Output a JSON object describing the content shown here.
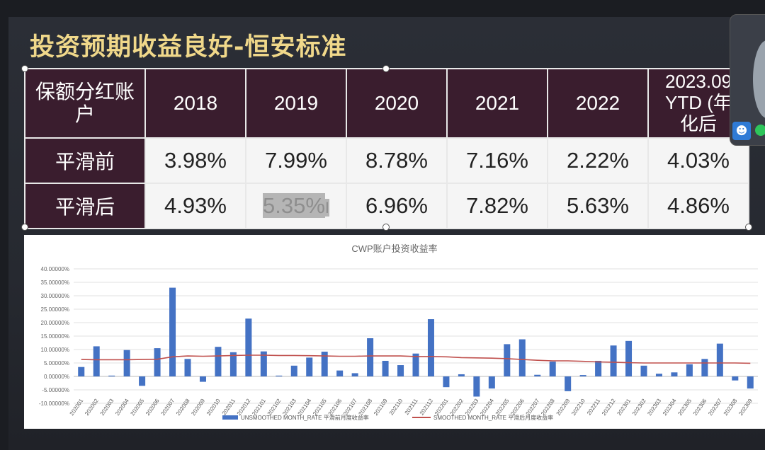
{
  "slide": {
    "title": "投资预期收益良好-恒安标准"
  },
  "table": {
    "corner": "保额分红账户",
    "years": [
      "2018",
      "2019",
      "2020",
      "2021",
      "2022",
      "2023.09YTD (年化后"
    ],
    "rows": [
      {
        "label": "平滑前",
        "values": [
          "3.98%",
          "7.99%",
          "8.78%",
          "7.16%",
          "2.22%",
          "4.03%"
        ]
      },
      {
        "label": "平滑后",
        "values": [
          "4.93%",
          "5.35%",
          "6.96%",
          "7.82%",
          "5.63%",
          "4.86%"
        ]
      }
    ],
    "highlight_text": "5.35%",
    "cursor_glyph": "I"
  },
  "chart_data": {
    "type": "bar",
    "title": "CWP账户投资收益率",
    "ylim": [
      -10,
      40
    ],
    "yticks": [
      "40.00000%",
      "35.00000%",
      "30.00000%",
      "25.00000%",
      "20.00000%",
      "15.00000%",
      "10.00000%",
      "5.00000%",
      "0.00000%",
      "-5.00000%",
      "-10.00000%"
    ],
    "categories": [
      "202001",
      "202002",
      "202003",
      "202004",
      "202005",
      "202006",
      "202007",
      "202008",
      "202009",
      "202010",
      "202011",
      "202012",
      "202101",
      "202102",
      "202103",
      "202104",
      "202105",
      "202106",
      "202107",
      "202108",
      "202109",
      "202110",
      "202111",
      "202112",
      "202201",
      "202202",
      "202203",
      "202204",
      "202205",
      "202206",
      "202207",
      "202208",
      "202209",
      "202210",
      "202211",
      "202212",
      "202301",
      "202302",
      "202303",
      "202304",
      "202305",
      "202306",
      "202307",
      "202308",
      "202309"
    ],
    "series": [
      {
        "name": "UNSMOOTHED MONTH_RATE 平滑前月度收益率",
        "kind": "bar",
        "color": "#4472c4",
        "values": [
          3.5,
          11.2,
          0.3,
          9.8,
          -3.5,
          10.5,
          33.0,
          6.5,
          -2.0,
          11.0,
          9.0,
          21.5,
          9.3,
          0.3,
          4.0,
          7.0,
          9.2,
          2.2,
          1.2,
          14.2,
          5.8,
          4.2,
          8.5,
          21.3,
          -4.0,
          0.8,
          -7.5,
          -4.5,
          12.0,
          13.8,
          0.6,
          5.5,
          -5.5,
          0.5,
          5.8,
          11.5,
          13.2,
          4.0,
          1.0,
          1.5,
          4.5,
          6.5,
          12.2,
          -1.5,
          -4.5
        ]
      },
      {
        "name": "SMOOTHED MONTH_RATE 平滑后月度收益率",
        "kind": "line",
        "color": "#c0504d",
        "values": [
          6.3,
          6.2,
          6.2,
          6.2,
          6.3,
          6.4,
          7.3,
          7.6,
          7.5,
          7.6,
          7.8,
          7.9,
          7.9,
          7.8,
          7.8,
          7.7,
          7.6,
          7.5,
          7.5,
          7.6,
          7.6,
          7.6,
          7.4,
          7.4,
          7.3,
          7.0,
          6.9,
          6.8,
          6.6,
          6.3,
          6.0,
          5.8,
          5.8,
          5.6,
          5.4,
          5.3,
          5.1,
          5.0,
          5.0,
          5.0,
          5.0,
          5.0,
          5.0,
          5.0,
          4.9
        ]
      }
    ]
  }
}
